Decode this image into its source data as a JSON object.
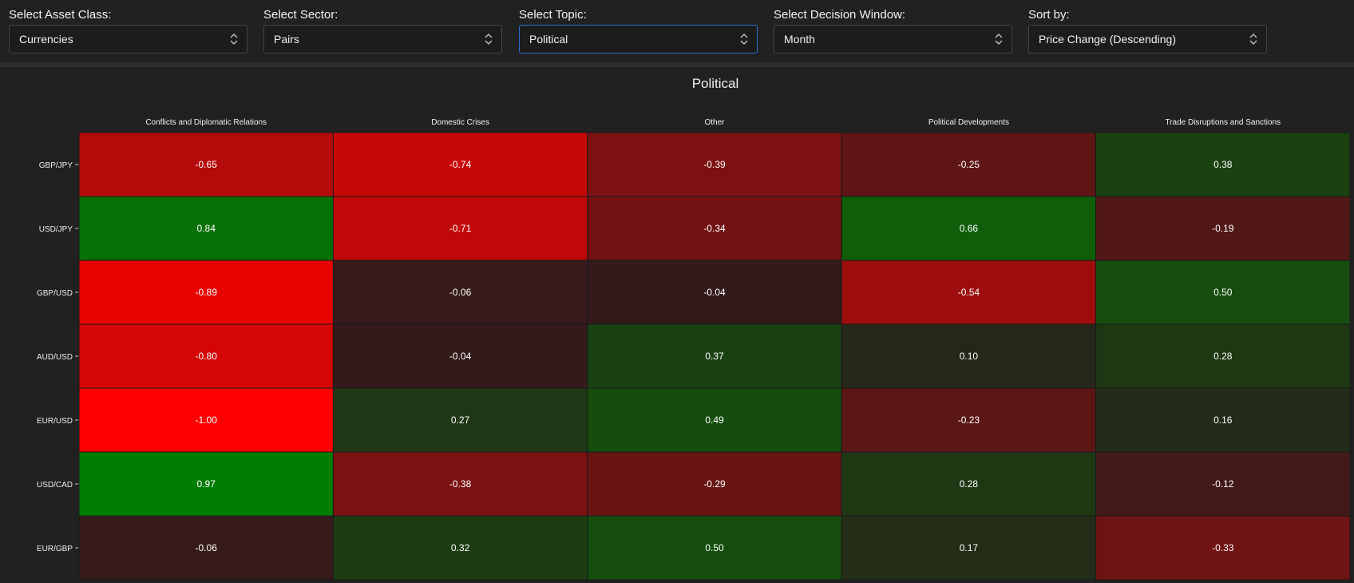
{
  "filters": [
    {
      "label": "Select Asset Class:",
      "value": "Currencies",
      "active": false
    },
    {
      "label": "Select Sector:",
      "value": "Pairs",
      "active": false
    },
    {
      "label": "Select Topic:",
      "value": "Political",
      "active": true
    },
    {
      "label": "Select Decision Window:",
      "value": "Month",
      "active": false
    },
    {
      "label": "Sort by:",
      "value": "Price Change (Descending)",
      "active": false
    }
  ],
  "chart_data": {
    "type": "heatmap",
    "title": "Political",
    "columns": [
      "Conflicts and Diplomatic Relations",
      "Domestic Crises",
      "Other",
      "Political Developments",
      "Trade Disruptions and Sanctions"
    ],
    "rows": [
      "GBP/JPY",
      "USD/JPY",
      "GBP/USD",
      "AUD/USD",
      "EUR/USD",
      "USD/CAD",
      "EUR/GBP"
    ],
    "values": [
      [
        -0.65,
        -0.74,
        -0.39,
        -0.25,
        0.38
      ],
      [
        0.84,
        -0.71,
        -0.34,
        0.66,
        -0.19
      ],
      [
        -0.89,
        -0.06,
        -0.04,
        -0.54,
        0.5
      ],
      [
        -0.8,
        -0.04,
        0.37,
        0.1,
        0.28
      ],
      [
        -1.0,
        0.27,
        0.49,
        -0.23,
        0.16
      ],
      [
        0.97,
        -0.38,
        -0.29,
        0.28,
        -0.12
      ],
      [
        -0.06,
        0.32,
        0.5,
        0.17,
        -0.33
      ]
    ],
    "color_scale": {
      "min": -1,
      "max": 1,
      "negative": "#ff0000",
      "neutral": "#2a1c1c",
      "positive": "#008000"
    }
  }
}
